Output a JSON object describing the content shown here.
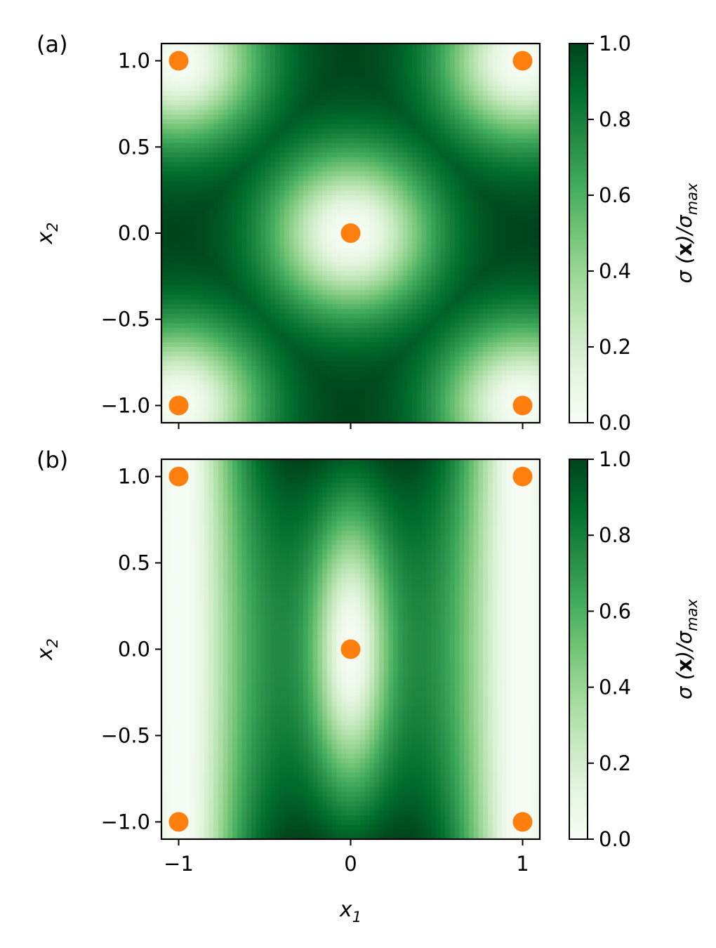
{
  "chart_data": [
    {
      "type": "heatmap",
      "panel_label": "(a)",
      "colormap": "Greens",
      "field": "symmetric",
      "x_range": [
        -1.1,
        1.1
      ],
      "y_range": [
        -1.1,
        1.1
      ],
      "x_ticks": [
        -1,
        0,
        1
      ],
      "x_tick_labels_shown": false,
      "y_ticks": [
        1.0,
        0.5,
        0.0,
        -0.5,
        -1.0
      ],
      "y_tick_labels": [
        "1.0",
        "0.5",
        "0.0",
        "−0.5",
        "−1.0"
      ],
      "ylabel": "x",
      "ylabel_sub": "2",
      "colorbar": {
        "range": [
          0.0,
          1.0
        ],
        "ticks": [
          1.0,
          0.8,
          0.6,
          0.4,
          0.2,
          0.0
        ],
        "tick_labels": [
          "1.0",
          "0.8",
          "0.6",
          "0.4",
          "0.2",
          "0.0"
        ],
        "label": "σ (x)/σmax"
      },
      "points": [
        {
          "x": -1,
          "y": 1
        },
        {
          "x": 1,
          "y": 1
        },
        {
          "x": 0,
          "y": 0
        },
        {
          "x": -1,
          "y": -1
        },
        {
          "x": 1,
          "y": -1
        }
      ],
      "point_color": "#ff7f0e"
    },
    {
      "type": "heatmap",
      "panel_label": "(b)",
      "colormap": "Greens",
      "field": "vertical-bands",
      "x_range": [
        -1.1,
        1.1
      ],
      "y_range": [
        -1.1,
        1.1
      ],
      "x_ticks": [
        -1,
        0,
        1
      ],
      "x_tick_labels": [
        "−1",
        "0",
        "1"
      ],
      "x_tick_labels_shown": true,
      "y_ticks": [
        1.0,
        0.5,
        0.0,
        -0.5,
        -1.0
      ],
      "y_tick_labels": [
        "1.0",
        "0.5",
        "0.0",
        "−0.5",
        "−1.0"
      ],
      "xlabel": "x",
      "xlabel_sub": "1",
      "ylabel": "x",
      "ylabel_sub": "2",
      "colorbar": {
        "range": [
          0.0,
          1.0
        ],
        "ticks": [
          1.0,
          0.8,
          0.6,
          0.4,
          0.2,
          0.0
        ],
        "tick_labels": [
          "1.0",
          "0.8",
          "0.6",
          "0.4",
          "0.2",
          "0.0"
        ],
        "label": "σ (x)/σmax"
      },
      "points": [
        {
          "x": -1,
          "y": 1
        },
        {
          "x": 1,
          "y": 1
        },
        {
          "x": 0,
          "y": 0
        },
        {
          "x": -1,
          "y": -1
        },
        {
          "x": 1,
          "y": -1
        }
      ],
      "point_color": "#ff7f0e"
    }
  ]
}
